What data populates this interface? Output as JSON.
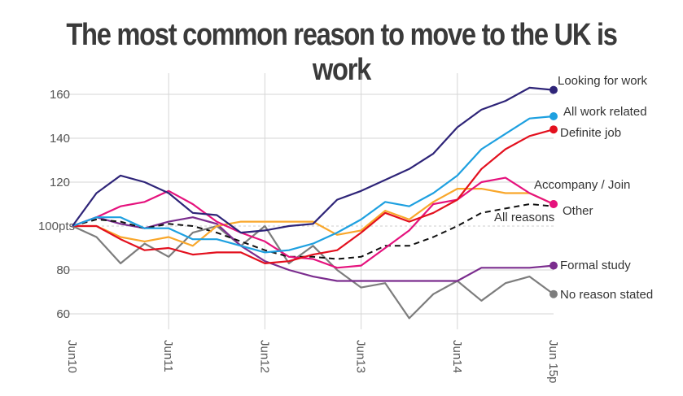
{
  "chart_data": {
    "type": "line",
    "title": "The most common reason to move to the UK is work",
    "xlabel": "",
    "ylabel": "",
    "ylim": [
      55,
      168
    ],
    "yticks": [
      {
        "v": 60,
        "label": "60"
      },
      {
        "v": 80,
        "label": "80"
      },
      {
        "v": 100,
        "label": "100pts"
      },
      {
        "v": 120,
        "label": "120"
      },
      {
        "v": 140,
        "label": "140"
      },
      {
        "v": 160,
        "label": "160"
      }
    ],
    "xticks": [
      "Jun10",
      "Jun11",
      "Jun12",
      "Jun13",
      "Jun14",
      "Jun 15p"
    ],
    "points_per_year": 4,
    "grid": true,
    "baseline": 100,
    "series": [
      {
        "name": "Looking for work",
        "color": "#2e2478",
        "dashed": false,
        "values": [
          100,
          115,
          123,
          120,
          115,
          106,
          105,
          97,
          98,
          100,
          101,
          112,
          116,
          121,
          126,
          133,
          145,
          153,
          157,
          163,
          162
        ]
      },
      {
        "name": "All work related",
        "color": "#1ea0e0",
        "dashed": false,
        "values": [
          100,
          104,
          104,
          99,
          99,
          94,
          94,
          91,
          88,
          89,
          92,
          97,
          103,
          111,
          109,
          115,
          123,
          135,
          142,
          149,
          150
        ]
      },
      {
        "name": "Definite job",
        "color": "#e3101e",
        "dashed": false,
        "values": [
          100,
          100,
          94,
          89,
          90,
          87,
          88,
          88,
          83,
          84,
          87,
          89,
          97,
          106,
          102,
          106,
          112,
          126,
          135,
          141,
          144
        ]
      },
      {
        "name": "Accompany / Join",
        "color": "#e5127d",
        "dashed": false,
        "values": [
          100,
          104,
          109,
          111,
          116,
          110,
          102,
          97,
          93,
          86,
          85,
          81,
          82,
          90,
          98,
          110,
          112,
          120,
          122,
          115,
          110
        ]
      },
      {
        "name": "Other",
        "color": "#f9a72b",
        "dashed": false,
        "values": [
          100,
          100,
          95,
          93,
          95,
          91,
          100,
          102,
          102,
          102,
          102,
          96,
          98,
          107,
          103,
          111,
          117,
          117,
          115,
          115,
          110
        ]
      },
      {
        "name": "All reasons",
        "color": "#111111",
        "dashed": true,
        "values": [
          100,
          103,
          102,
          99,
          101,
          100,
          97,
          93,
          89,
          86,
          86,
          85,
          86,
          91,
          91,
          95,
          100,
          106,
          108,
          110,
          109
        ]
      },
      {
        "name": "Formal study",
        "color": "#7b2d8e",
        "dashed": false,
        "values": [
          100,
          104,
          101,
          99,
          102,
          104,
          101,
          91,
          84,
          80,
          77,
          75,
          75,
          75,
          75,
          75,
          75,
          81,
          81,
          81,
          82
        ]
      },
      {
        "name": "No reason stated",
        "color": "#7d7d7d",
        "dashed": false,
        "values": [
          100,
          95,
          83,
          92,
          86,
          97,
          100,
          91,
          100,
          83,
          91,
          80,
          72,
          74,
          58,
          69,
          75,
          66,
          74,
          77,
          69
        ]
      }
    ]
  }
}
